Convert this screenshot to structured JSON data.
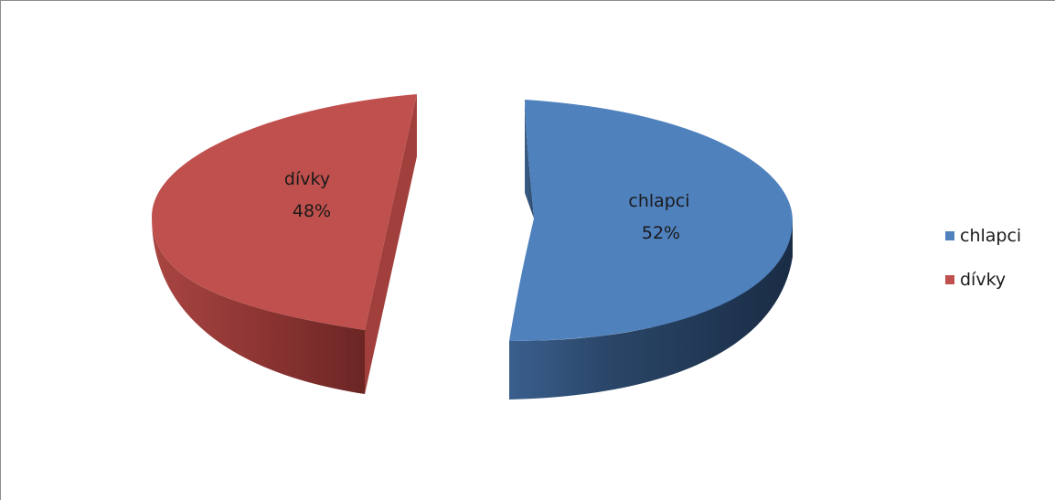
{
  "chart_data": {
    "type": "pie",
    "style": "3d-exploded",
    "slices": [
      {
        "name": "chlapci",
        "value": 52,
        "label_pct": "52%",
        "color": "#4f81bd",
        "side_color": "#2a4a72"
      },
      {
        "name": "dívky",
        "value": 48,
        "label_pct": "48%",
        "color": "#c0504d",
        "side_color": "#8c3331"
      }
    ],
    "legend": {
      "placement": "right",
      "entries": [
        "chlapci",
        "dívky"
      ]
    }
  }
}
